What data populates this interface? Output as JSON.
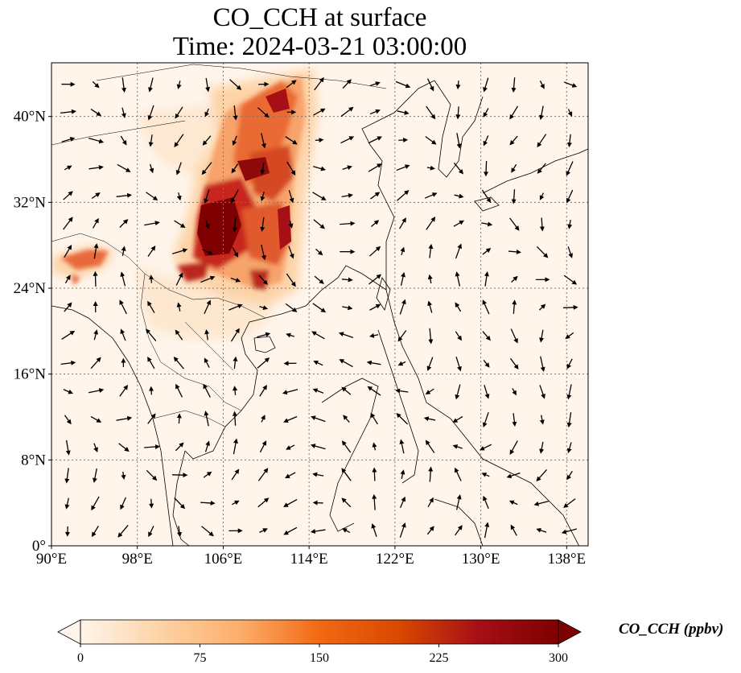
{
  "title": {
    "line1": "CO_CCH at surface",
    "line2": "Time: 2024-03-21 03:00:00"
  },
  "map": {
    "lon_range": [
      90,
      140
    ],
    "lat_range": [
      0,
      45
    ],
    "lon_ticks": [
      {
        "value": 90,
        "label": "90°E"
      },
      {
        "value": 98,
        "label": "98°E"
      },
      {
        "value": 106,
        "label": "106°E"
      },
      {
        "value": 114,
        "label": "114°E"
      },
      {
        "value": 122,
        "label": "122°E"
      },
      {
        "value": 130,
        "label": "130°E"
      },
      {
        "value": 138,
        "label": "138°E"
      }
    ],
    "lat_ticks": [
      {
        "value": 0,
        "label": "0°"
      },
      {
        "value": 8,
        "label": "8°N"
      },
      {
        "value": 16,
        "label": "16°N"
      },
      {
        "value": 24,
        "label": "24°N"
      },
      {
        "value": 32,
        "label": "32°N"
      },
      {
        "value": 40,
        "label": "40°N"
      }
    ],
    "gridlines": true,
    "field": "CO_CCH",
    "background_color": "#fff5eb",
    "wind_vectors": true
  },
  "colorbar": {
    "label": "CO_CCH (ppbv)",
    "min": 0,
    "max": 300,
    "ticks": [
      {
        "value": 0,
        "label": "0"
      },
      {
        "value": 75,
        "label": "75"
      },
      {
        "value": 150,
        "label": "150"
      },
      {
        "value": 225,
        "label": "225"
      },
      {
        "value": 300,
        "label": "300"
      }
    ],
    "colors": [
      "#fff5eb",
      "#fdd3a6",
      "#fdae6b",
      "#f16913",
      "#d94801",
      "#a50f15",
      "#7f0000"
    ],
    "extend": "both"
  }
}
